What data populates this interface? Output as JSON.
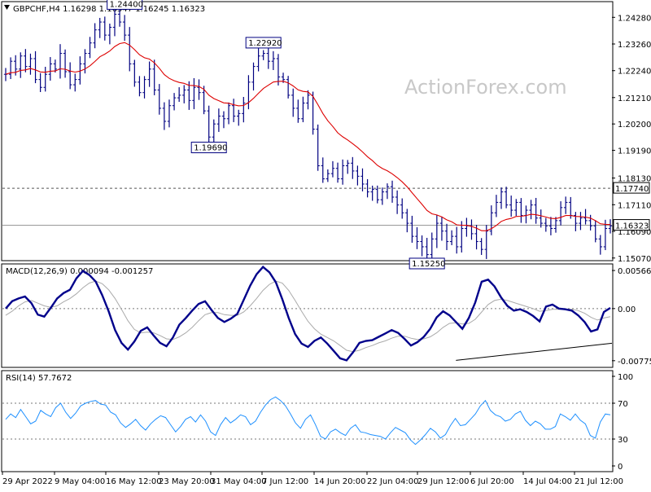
{
  "chart_data": [
    {
      "type": "candlestick",
      "panel": "price",
      "header": "GBPCHF,H4  1.16298 1.16347 1.16245 1.16323",
      "watermark": "ActionForex.com",
      "yticks": [
        "1.24280",
        "1.23260",
        "1.22240",
        "1.21210",
        "1.20200",
        "1.19190",
        "1.18130",
        "1.17110",
        "1.16090",
        "1.15070"
      ],
      "ylim": [
        1.15,
        1.2485
      ],
      "levels": [
        {
          "label": "1.17740",
          "value": 1.1774,
          "style": "dashed"
        },
        {
          "label": "1.16323",
          "value": 1.16323,
          "style": "solid"
        }
      ],
      "annotations": [
        {
          "label": "1.24400",
          "x": 24,
          "value": 1.244
        },
        {
          "label": "1.22920",
          "x": 52,
          "value": 1.2292
        },
        {
          "label": "1.19690",
          "x": 41,
          "value": 1.1969
        },
        {
          "label": "1.15250",
          "x": 85,
          "value": 1.1525
        }
      ],
      "ma_series": "moving average (red)",
      "series": [
        {
          "values": [
            1.221,
            1.226,
            1.223,
            1.228,
            1.224,
            1.227,
            1.219,
            1.216,
            1.221,
            1.225,
            1.223,
            1.229,
            1.222,
            1.217,
            1.219,
            1.225,
            1.229,
            1.233,
            1.238,
            1.241,
            1.236,
            1.239,
            1.244,
            1.241,
            1.236,
            1.225,
            1.218,
            1.214,
            1.219,
            1.223,
            1.215,
            1.208,
            1.203,
            1.209,
            1.212,
            1.213,
            1.215,
            1.211,
            1.216,
            1.214,
            1.207,
            1.197,
            1.202,
            1.205,
            1.204,
            1.209,
            1.205,
            1.206,
            1.21,
            1.218,
            1.224,
            1.228,
            1.229,
            1.226,
            1.227,
            1.22,
            1.219,
            1.213,
            1.208,
            1.204,
            1.21,
            1.213,
            1.2,
            1.186,
            1.181,
            1.183,
            1.185,
            1.181,
            1.186,
            1.187,
            1.184,
            1.182,
            1.179,
            1.176,
            1.177,
            1.173,
            1.176,
            1.178,
            1.174,
            1.171,
            1.168,
            1.164,
            1.159,
            1.157,
            1.155,
            1.152,
            1.158,
            1.164,
            1.161,
            1.157,
            1.159,
            1.155,
            1.162,
            1.163,
            1.16,
            1.157,
            1.154,
            1.161,
            1.168,
            1.172,
            1.176,
            1.171,
            1.169,
            1.172,
            1.167,
            1.169,
            1.171,
            1.166,
            1.164,
            1.163,
            1.162,
            1.165,
            1.17,
            1.172,
            1.167,
            1.164,
            1.166,
            1.165,
            1.163,
            1.158,
            1.155,
            1.162,
            1.163
          ]
        }
      ]
    },
    {
      "type": "line",
      "panel": "macd",
      "header": "MACD(12,26,9) 0.000094 -0.001257",
      "yticks": [
        "0.005664",
        "0.00",
        "-0.00775"
      ],
      "tick_values": [
        0.005664,
        0.0,
        -0.00775
      ],
      "ylim": [
        -0.0085,
        0.0064
      ],
      "trendline": [
        {
          "x": 70,
          "value": -0.0077
        },
        {
          "x": 120,
          "value": -0.0028
        }
      ],
      "series": [
        {
          "name": "MACD",
          "values": [
            0.0,
            0.0011,
            0.0015,
            0.0018,
            0.0008,
            -0.0009,
            -0.0012,
            0.0001,
            0.0015,
            0.0023,
            0.0028,
            0.0045,
            0.0056,
            0.005,
            0.004,
            0.002,
            -0.0004,
            -0.0032,
            -0.0051,
            -0.0061,
            -0.0049,
            -0.0033,
            -0.0028,
            -0.004,
            -0.0051,
            -0.0056,
            -0.0043,
            -0.0024,
            -0.0014,
            -0.0003,
            0.0007,
            0.0011,
            -0.0002,
            -0.0014,
            -0.002,
            -0.0015,
            -0.0008,
            0.0013,
            0.0034,
            0.0051,
            0.0062,
            0.0054,
            0.0039,
            0.0014,
            -0.0014,
            -0.0038,
            -0.0052,
            -0.0057,
            -0.0048,
            -0.0043,
            -0.0052,
            -0.0063,
            -0.0074,
            -0.0077,
            -0.0065,
            -0.0051,
            -0.0048,
            -0.0047,
            -0.0042,
            -0.0037,
            -0.0032,
            -0.0036,
            -0.0045,
            -0.0055,
            -0.005,
            -0.0042,
            -0.003,
            -0.0013,
            -0.0004,
            -0.001,
            -0.002,
            -0.003,
            -0.0014,
            0.0009,
            0.004,
            0.0043,
            0.0033,
            0.0017,
            0.0004,
            -0.0003,
            -0.0001,
            -0.0005,
            -0.0011,
            -0.0019,
            0.0003,
            0.0006,
            0.0,
            -0.0001,
            -0.0003,
            -0.001,
            -0.002,
            -0.0034,
            -0.0031,
            -0.0005,
            0.0001
          ]
        },
        {
          "name": "Signal",
          "values": [
            -0.001,
            -0.0004,
            0.0004,
            0.001,
            0.0012,
            0.0008,
            0.0004,
            0.0002,
            0.0004,
            0.001,
            0.0015,
            0.0022,
            0.0031,
            0.0038,
            0.0041,
            0.0037,
            0.0028,
            0.0015,
            -0.0001,
            -0.0018,
            -0.0031,
            -0.0036,
            -0.0035,
            -0.0036,
            -0.004,
            -0.0045,
            -0.0046,
            -0.0042,
            -0.0036,
            -0.0028,
            -0.0018,
            -0.0009,
            -0.0006,
            -0.0006,
            -0.0009,
            -0.001,
            -0.001,
            -0.0005,
            0.0004,
            0.0015,
            0.0027,
            0.0036,
            0.0041,
            0.0038,
            0.0027,
            0.0012,
            -0.0004,
            -0.0019,
            -0.003,
            -0.0038,
            -0.0043,
            -0.0048,
            -0.0055,
            -0.0062,
            -0.0064,
            -0.0062,
            -0.0058,
            -0.0055,
            -0.0051,
            -0.0048,
            -0.0044,
            -0.0041,
            -0.0041,
            -0.0044,
            -0.0046,
            -0.0045,
            -0.0042,
            -0.0036,
            -0.0028,
            -0.0022,
            -0.0021,
            -0.0023,
            -0.0022,
            -0.0016,
            -0.0005,
            0.0006,
            0.0012,
            0.0014,
            0.0012,
            0.0009,
            0.0006,
            0.0003,
            0.0,
            -0.0004,
            -0.0003,
            -0.0001,
            -0.0001,
            -0.0001,
            -0.0001,
            -0.0003,
            -0.0007,
            -0.0013,
            -0.0017,
            -0.0014,
            -0.0012
          ]
        }
      ]
    },
    {
      "type": "line",
      "panel": "rsi",
      "header": "RSI(14) 57.7672",
      "yticks": [
        "100",
        "70",
        "30",
        "0"
      ],
      "tick_values": [
        100,
        70,
        30,
        0
      ],
      "levels": [
        70,
        30
      ],
      "ylim": [
        0,
        100
      ],
      "series": [
        {
          "values": [
            52,
            58,
            54,
            63,
            55,
            47,
            50,
            62,
            58,
            55,
            65,
            70,
            60,
            53,
            59,
            67,
            70,
            72,
            73,
            69,
            68,
            60,
            57,
            48,
            43,
            47,
            52,
            45,
            40,
            47,
            52,
            56,
            54,
            46,
            38,
            44,
            52,
            55,
            49,
            57,
            50,
            38,
            34,
            46,
            54,
            48,
            52,
            57,
            55,
            46,
            50,
            60,
            68,
            74,
            77,
            73,
            67,
            58,
            48,
            42,
            52,
            57,
            46,
            33,
            30,
            38,
            41,
            37,
            34,
            42,
            46,
            38,
            37,
            35,
            34,
            33,
            30,
            37,
            43,
            40,
            37,
            29,
            24,
            29,
            35,
            42,
            38,
            31,
            35,
            45,
            53,
            45,
            46,
            52,
            58,
            67,
            73,
            62,
            57,
            55,
            50,
            52,
            58,
            61,
            51,
            45,
            50,
            47,
            41,
            41,
            44,
            58,
            55,
            51,
            58,
            51,
            47,
            34,
            31,
            49,
            58,
            57
          ]
        }
      ]
    },
    {
      "type": "axis",
      "panel": "time",
      "xticks": [
        "29 Apr 2022",
        "9 May 04:00",
        "16 May 12:00",
        "23 May 20:00",
        "31 May 04:00",
        "7 Jun 12:00",
        "14 Jun 20:00",
        "22 Jun 04:00",
        "29 Jun 12:00",
        "6 Jul 20:00",
        "14 Jul 04:00",
        "21 Jul 12:00"
      ]
    }
  ],
  "colors": {
    "background": "#ffffff",
    "bars": "#000080",
    "ma": "#dd0000",
    "macd": "#00008b",
    "signal": "#aaaaaa",
    "rsi": "#1e90ff",
    "grid": "#909090",
    "text": "#000000"
  }
}
